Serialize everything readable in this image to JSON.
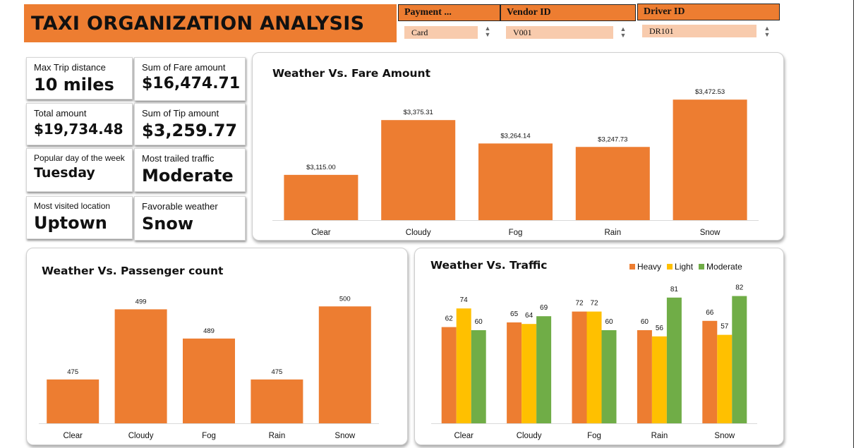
{
  "header": {
    "title": "TAXI ORGANIZATION ANALYSIS"
  },
  "slicers": [
    {
      "title": "Payment ...",
      "selected": "Card"
    },
    {
      "title": "Vendor ID",
      "selected": "V001"
    },
    {
      "title": "Driver ID",
      "selected": "DR101"
    }
  ],
  "kpis": {
    "max_trip": {
      "label": "Max Trip distance",
      "value": "10 miles"
    },
    "fare_sum": {
      "label": "Sum of Fare amount",
      "value": "$16,474.71"
    },
    "total_amount": {
      "label": "Total amount",
      "value": "$19,734.48"
    },
    "tip_sum": {
      "label": "Sum of Tip amount",
      "value": "$3,259.77"
    },
    "popular_day": {
      "label": "Popular day of the week",
      "value": "Tuesday"
    },
    "traffic": {
      "label": "Most trailed traffic",
      "value": "Moderate"
    },
    "location": {
      "label": "Most visited location",
      "value": "Uptown"
    },
    "weather": {
      "label": "Favorable weather",
      "value": "Snow"
    }
  },
  "colors": {
    "accent": "#ED7D31",
    "light": "#FFC000",
    "moderate": "#70AD47",
    "slicer_item": "#F8CBAD"
  },
  "chart_data": [
    {
      "type": "bar",
      "title": "Weather Vs. Fare Amount",
      "categories": [
        "Clear",
        "Cloudy",
        "Fog",
        "Rain",
        "Snow"
      ],
      "values": [
        3115.0,
        3375.31,
        3264.14,
        3247.73,
        3472.53
      ],
      "data_labels": [
        "$3,115.00",
        "$3,375.31",
        "$3,264.14",
        "$3,247.73",
        "$3,472.53"
      ],
      "ylim": [
        2900,
        3500
      ],
      "grid": false
    },
    {
      "type": "bar",
      "title": "Weather Vs. Passenger count",
      "categories": [
        "Clear",
        "Cloudy",
        "Fog",
        "Rain",
        "Snow"
      ],
      "values": [
        475,
        499,
        489,
        475,
        500
      ],
      "data_labels": [
        "475",
        "499",
        "489",
        "475",
        "500"
      ],
      "ylim": [
        460,
        502
      ],
      "grid": false
    },
    {
      "type": "bar",
      "title": "Weather Vs. Traffic",
      "categories": [
        "Clear",
        "Cloudy",
        "Fog",
        "Rain",
        "Snow"
      ],
      "series": [
        {
          "name": "Heavy",
          "color": "#ED7D31",
          "values": [
            62,
            65,
            72,
            60,
            66
          ]
        },
        {
          "name": "Light",
          "color": "#FFC000",
          "values": [
            74,
            64,
            72,
            56,
            57
          ]
        },
        {
          "name": "Moderate",
          "color": "#70AD47",
          "values": [
            60,
            69,
            60,
            81,
            82
          ]
        }
      ],
      "ylim": [
        0,
        90
      ],
      "legend": "top-right",
      "grid": false
    }
  ]
}
